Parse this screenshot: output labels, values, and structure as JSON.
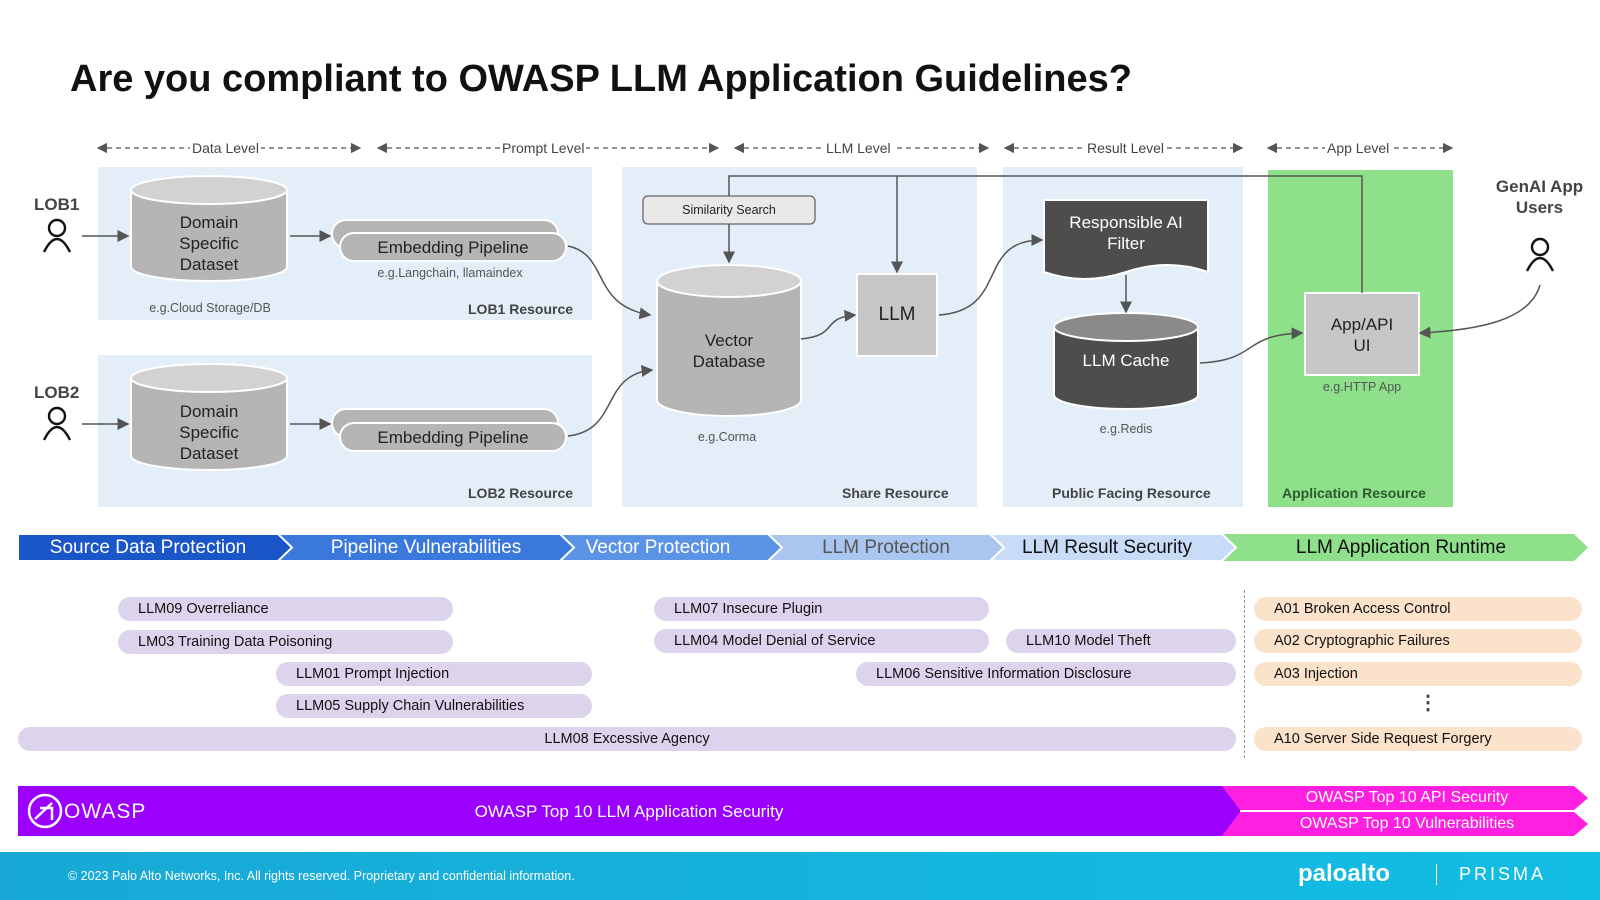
{
  "title": "Are you compliant to OWASP LLM Application Guidelines?",
  "levels": [
    "Data Level",
    "Prompt Level",
    "LLM Level",
    "Result Level",
    "App Level"
  ],
  "actors": {
    "lob1": "LOB1",
    "lob2": "LOB2",
    "genai_users": "GenAI App Users"
  },
  "nodes": {
    "dataset": "Domain Specific Dataset",
    "dataset_note": "e.g.Cloud Storage/DB",
    "embedding": "Embedding Pipeline",
    "embedding_note": "e.g.Langchain, llamaindex",
    "similarity": "Similarity Search",
    "vector_db": "Vector Database",
    "vector_note": "e.g.Corma",
    "llm": "LLM",
    "rai_filter": "Responsible AI Filter",
    "llm_cache": "LLM Cache",
    "cache_note": "e.g.Redis",
    "app_ui": "App/API UI",
    "app_note": "e.g.HTTP App"
  },
  "regions": {
    "lob1": "LOB1 Resource",
    "lob2": "LOB2 Resource",
    "share": "Share Resource",
    "public": "Public Facing Resource",
    "app": "Application  Resource"
  },
  "phases": [
    "Source Data Protection",
    "Pipeline Vulnerabilities",
    "Vector Protection",
    "LLM Protection",
    "LLM Result Security",
    "LLM Application Runtime"
  ],
  "risks": [
    "LLM09 Overreliance",
    "LM03 Training Data Poisoning",
    "LLM01 Prompt Injection",
    "LLM05 Supply Chain Vulnerabilities",
    "LLM08 Excessive Agency",
    "LLM07 Insecure Plugin",
    "LLM04 Model Denial of Service",
    "LLM10 Model Theft",
    "LLM06 Sensitive Information Disclosure"
  ],
  "web_risks": [
    "A01 Broken Access Control",
    "A02 Cryptographic Failures",
    "A03 Injection",
    "⋮",
    "A10 Server Side Request Forgery"
  ],
  "owasp": {
    "logo": "OWASP",
    "llm_band": "OWASP Top 10 LLM Application Security",
    "api_band": "OWASP Top 10 API Security",
    "vuln_band": "OWASP Top 10 Vulnerabilities"
  },
  "footer": {
    "copyright": "© 2023 Palo Alto Networks, Inc. All rights reserved. Proprietary and confidential information.",
    "brand1": "paloalto",
    "brand2": "PRISMA"
  },
  "colors": {
    "region": "#e3eef9",
    "app_region": "#8ee08a",
    "owasp_purple": "#9b00ff",
    "owasp_magenta": "#ff1fe0",
    "risk_pill": "#dcd3ec",
    "web_pill": "#fbe2cb"
  }
}
